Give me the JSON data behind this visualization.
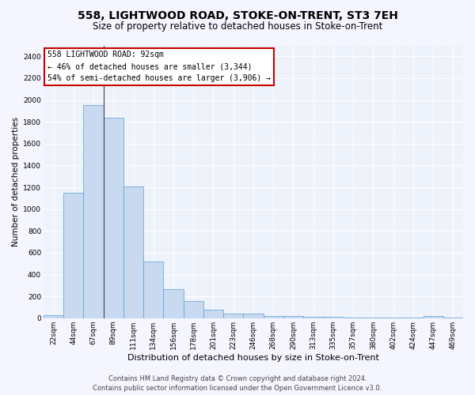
{
  "title": "558, LIGHTWOOD ROAD, STOKE-ON-TRENT, ST3 7EH",
  "subtitle": "Size of property relative to detached houses in Stoke-on-Trent",
  "xlabel": "Distribution of detached houses by size in Stoke-on-Trent",
  "ylabel": "Number of detached properties",
  "categories": [
    "22sqm",
    "44sqm",
    "67sqm",
    "89sqm",
    "111sqm",
    "134sqm",
    "156sqm",
    "178sqm",
    "201sqm",
    "223sqm",
    "246sqm",
    "268sqm",
    "290sqm",
    "313sqm",
    "335sqm",
    "357sqm",
    "380sqm",
    "402sqm",
    "424sqm",
    "447sqm",
    "469sqm"
  ],
  "values": [
    25,
    1150,
    1950,
    1840,
    1210,
    520,
    265,
    155,
    80,
    45,
    40,
    20,
    20,
    10,
    10,
    5,
    5,
    5,
    5,
    20,
    5
  ],
  "bar_color": "#c8d9f0",
  "bar_edge_color": "#5a9fd4",
  "annotation_text": "558 LIGHTWOOD ROAD: 92sqm\n← 46% of detached houses are smaller (3,344)\n54% of semi-detached houses are larger (3,906) →",
  "annotation_box_facecolor": "#ffffff",
  "annotation_box_edgecolor": "#cc0000",
  "vline_x_index": 2,
  "vline_color": "#444444",
  "ylim": [
    0,
    2500
  ],
  "yticks": [
    0,
    200,
    400,
    600,
    800,
    1000,
    1200,
    1400,
    1600,
    1800,
    2000,
    2200,
    2400
  ],
  "fig_bg_color": "#f5f5ff",
  "plot_bg_color": "#eef2fb",
  "grid_color": "#ffffff",
  "title_fontsize": 10,
  "subtitle_fontsize": 8.5,
  "ylabel_fontsize": 7.5,
  "xlabel_fontsize": 8,
  "tick_fontsize": 6.5,
  "annotation_fontsize": 7,
  "footer_fontsize": 6,
  "footer_text": "Contains HM Land Registry data © Crown copyright and database right 2024.\nContains public sector information licensed under the Open Government Licence v3.0."
}
